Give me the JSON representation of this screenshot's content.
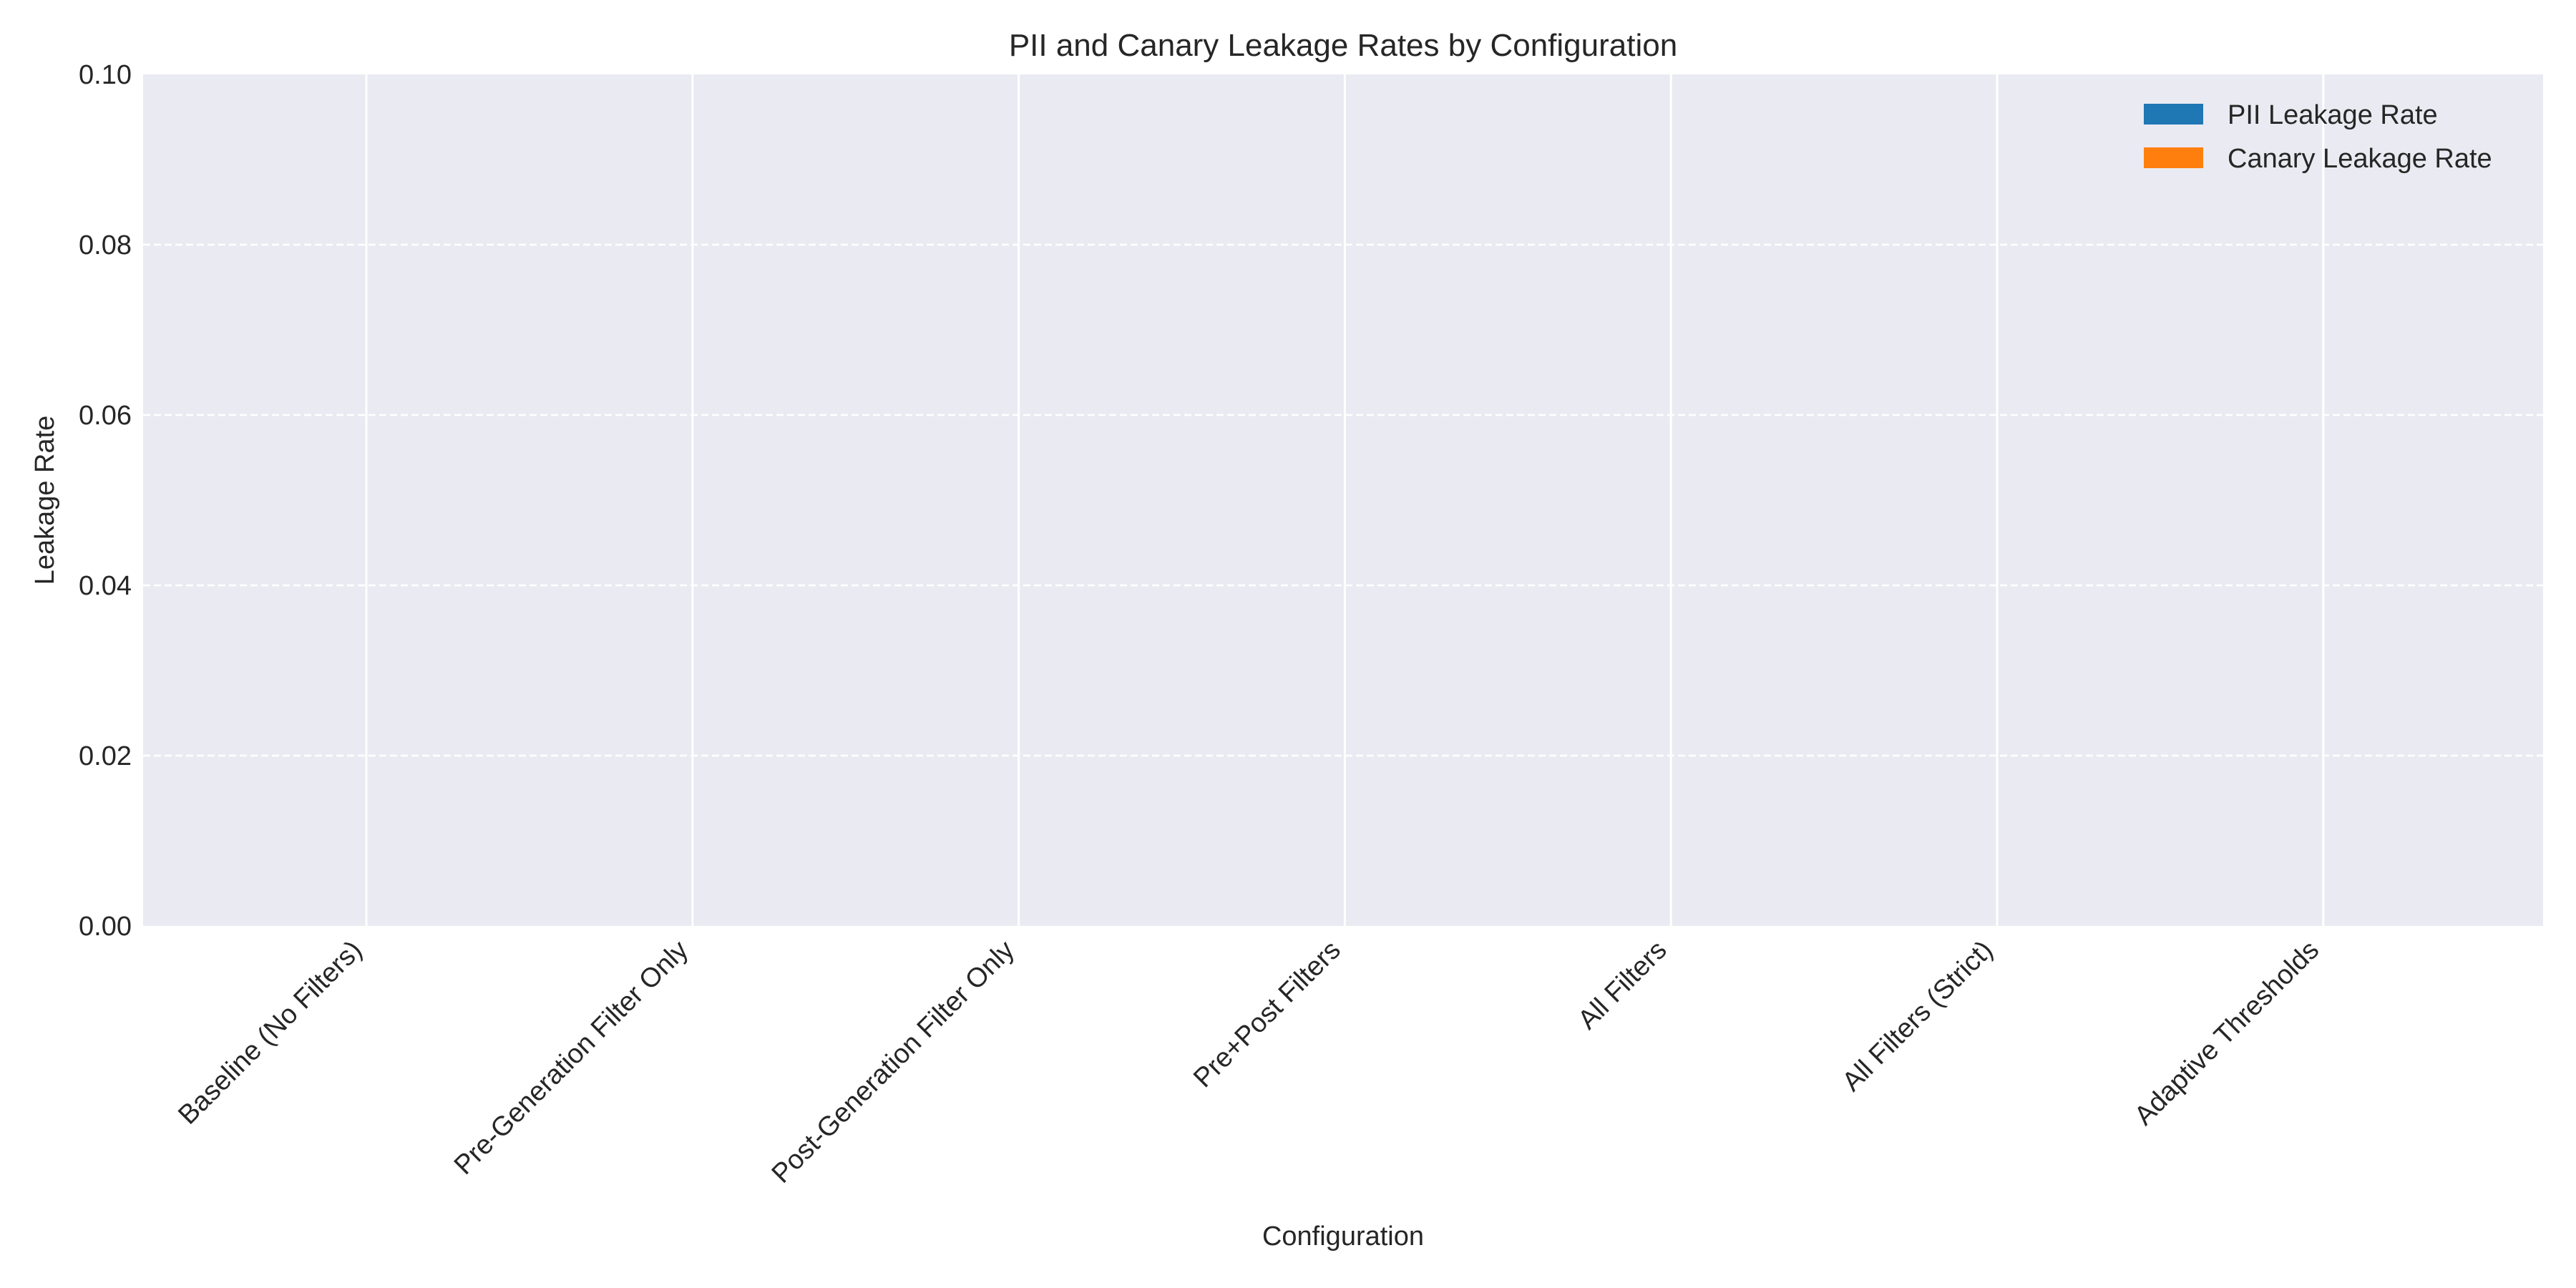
{
  "chart_data": {
    "type": "bar",
    "title": "PII and Canary Leakage Rates by Configuration",
    "xlabel": "Configuration",
    "ylabel": "Leakage Rate",
    "categories": [
      "Baseline (No Filters)",
      "Pre-Generation Filter Only",
      "Post-Generation Filter Only",
      "Pre+Post Filters",
      "All Filters",
      "All Filters (Strict)",
      "Adaptive Thresholds"
    ],
    "series": [
      {
        "name": "PII Leakage Rate",
        "color": "#1f77b4",
        "values": [
          0,
          0,
          0,
          0,
          0,
          0,
          0
        ]
      },
      {
        "name": "Canary Leakage Rate",
        "color": "#ff7f0e",
        "values": [
          0,
          0,
          0,
          0,
          0,
          0,
          0
        ]
      }
    ],
    "ylim": [
      0,
      0.1
    ],
    "yticks": [
      "0.00",
      "0.02",
      "0.04",
      "0.06",
      "0.08",
      "0.10"
    ],
    "grid": true,
    "legend_position": "top-right",
    "plot_background": "#eaeaf2"
  }
}
